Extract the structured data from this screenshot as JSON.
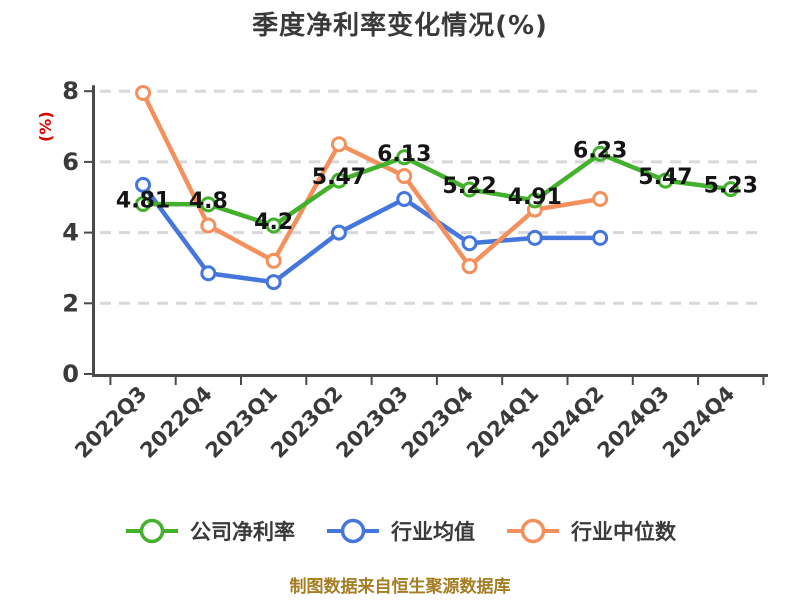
{
  "footer": {
    "text": "制图数据来自恒生聚源数据库"
  },
  "chart_data": {
    "type": "line",
    "title": "季度净利率变化情况(%)",
    "xlabel": "",
    "ylabel": "(%)",
    "ylabel_color": "#dd0000",
    "categories": [
      "2022Q3",
      "2022Q4",
      "2023Q1",
      "2023Q2",
      "2023Q3",
      "2023Q4",
      "2024Q1",
      "2024Q2",
      "2024Q3",
      "2024Q4"
    ],
    "ylim": [
      0,
      8
    ],
    "yticks": [
      0,
      2,
      4,
      6,
      8
    ],
    "grid": "horizontal-dashed",
    "legend_position": "bottom",
    "legend": [
      "公司净利率",
      "行业均值",
      "行业中位数"
    ],
    "series": [
      {
        "id": "industry-mean",
        "name": "行业均值",
        "color": "#4476dd",
        "values": [
          5.35,
          2.85,
          2.6,
          4.0,
          4.95,
          3.7,
          3.85,
          3.85,
          null,
          null
        ]
      },
      {
        "id": "industry-median",
        "name": "行业中位数",
        "color": "#f5905c",
        "values": [
          7.95,
          4.2,
          3.2,
          6.5,
          5.6,
          3.05,
          4.65,
          4.95,
          null,
          null
        ]
      },
      {
        "id": "company-net-margin",
        "name": "公司净利率",
        "color": "#44b12c",
        "values": [
          4.81,
          4.8,
          4.2,
          5.47,
          6.13,
          5.22,
          4.91,
          6.23,
          5.47,
          5.23
        ],
        "data_labels": [
          "4.81",
          "4.8",
          "4.2",
          "5.47",
          "6.13",
          "5.22",
          "4.91",
          "6.23",
          "5.47",
          "5.23"
        ]
      }
    ]
  }
}
